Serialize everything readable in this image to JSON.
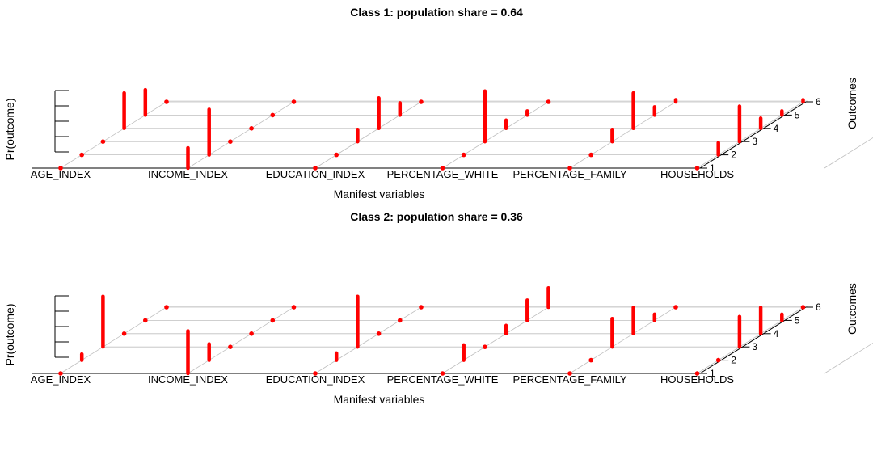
{
  "chart_data": [
    {
      "type": "bar3d",
      "title": "Class 1: population share = 0.64",
      "xlabel": "Manifest variables",
      "ylabel": "Pr(outcome)",
      "zlabel": "Outcomes",
      "categories": [
        "AGE_INDEX",
        "INCOME_INDEX",
        "EDUCATION_INDEX",
        "PERCENTAGE_WHITE",
        "PERCENTAGE_FAMILY",
        "HOUSEHOLDS"
      ],
      "outcomes": [
        "1",
        "2",
        "3",
        "4",
        "5",
        "6"
      ],
      "values": [
        [
          0.0,
          0.0,
          0.0,
          0.35,
          0.25,
          0.0
        ],
        [
          0.2,
          0.45,
          0.0,
          0.0,
          0.0,
          0.0
        ],
        [
          0.0,
          0.0,
          0.12,
          0.3,
          0.12,
          0.0
        ],
        [
          0.0,
          0.0,
          0.5,
          0.08,
          0.04,
          0.0
        ],
        [
          0.0,
          0.0,
          0.12,
          0.35,
          0.08,
          0.02
        ],
        [
          0.0,
          0.12,
          0.35,
          0.1,
          0.04,
          0.02
        ]
      ],
      "color": "#ff0000"
    },
    {
      "type": "bar3d",
      "title": "Class 2: population share = 0.36",
      "xlabel": "Manifest variables",
      "ylabel": "Pr(outcome)",
      "zlabel": "Outcomes",
      "categories": [
        "AGE_INDEX",
        "INCOME_INDEX",
        "EDUCATION_INDEX",
        "PERCENTAGE_WHITE",
        "PERCENTAGE_FAMILY",
        "HOUSEHOLDS"
      ],
      "outcomes": [
        "1",
        "2",
        "3",
        "4",
        "5",
        "6"
      ],
      "values": [
        [
          0.0,
          0.06,
          0.5,
          0.0,
          0.0,
          0.0
        ],
        [
          0.42,
          0.16,
          0.0,
          0.0,
          0.0,
          0.0
        ],
        [
          0.0,
          0.07,
          0.5,
          0.0,
          0.0,
          0.0
        ],
        [
          0.0,
          0.15,
          0.0,
          0.08,
          0.2,
          0.19
        ],
        [
          0.0,
          0.0,
          0.28,
          0.26,
          0.06,
          0.0
        ],
        [
          0.0,
          0.0,
          0.3,
          0.26,
          0.06,
          0.0
        ]
      ],
      "color": "#ff0000"
    }
  ]
}
